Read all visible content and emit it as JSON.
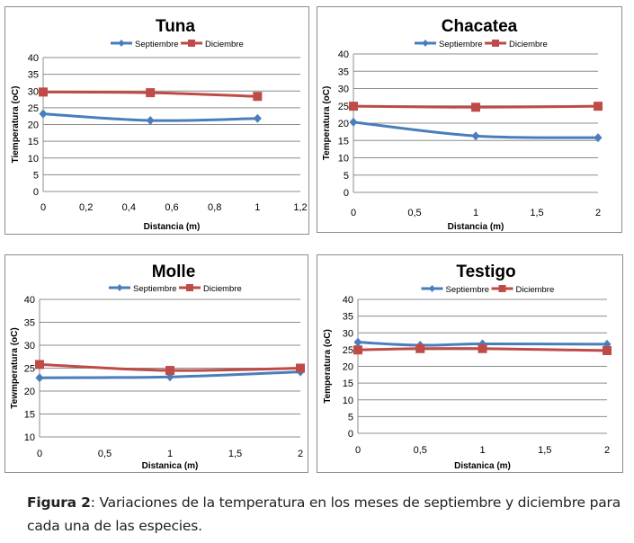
{
  "colors": {
    "septiembre": "#4a7ebb",
    "diciembre": "#be4b48",
    "grid": "#8c8c8c"
  },
  "caption": {
    "label": "Figura 2",
    "text": ": Variaciones de la temperatura en los meses de septiembre y diciembre para cada una de las especies."
  },
  "chart_data": [
    {
      "type": "line",
      "title": "Tuna",
      "xlabel": "Distancia (m)",
      "ylabel": "Tiemperatura (oC)",
      "xlim": [
        0,
        1.2
      ],
      "ylim": [
        0,
        40
      ],
      "xticks": [
        0,
        0.2,
        0.4,
        0.6,
        0.8,
        1,
        1.2
      ],
      "xtick_labels": [
        "0",
        "0,2",
        "0,4",
        "0,6",
        "0,8",
        "1",
        "1,2"
      ],
      "yticks": [
        0,
        5,
        10,
        15,
        20,
        25,
        30,
        35,
        40
      ],
      "grid": true,
      "legend": "top-center",
      "x": [
        0,
        0.5,
        1
      ],
      "series": [
        {
          "name": "Septiembre",
          "marker": "diamond",
          "values": [
            23.2,
            21.2,
            21.8
          ]
        },
        {
          "name": "Diciembre",
          "marker": "square",
          "values": [
            29.7,
            29.5,
            28.4
          ]
        }
      ]
    },
    {
      "type": "line",
      "title": "Chacatea",
      "xlabel": "Distancia (m)",
      "ylabel": "Temperatura (oC)",
      "xlim": [
        0,
        2
      ],
      "ylim": [
        0,
        40
      ],
      "xticks": [
        0,
        0.5,
        1,
        1.5,
        2
      ],
      "xtick_labels": [
        "0",
        "0,5",
        "1",
        "1,5",
        "2"
      ],
      "yticks": [
        0,
        5,
        10,
        15,
        20,
        25,
        30,
        35,
        40
      ],
      "grid": true,
      "legend": "top-center",
      "x": [
        0,
        1,
        2
      ],
      "series": [
        {
          "name": "Septiembre",
          "marker": "diamond",
          "values": [
            20.3,
            16.3,
            15.8
          ]
        },
        {
          "name": "Diciembre",
          "marker": "square",
          "values": [
            24.9,
            24.6,
            24.9
          ]
        }
      ]
    },
    {
      "type": "line",
      "title": "Molle",
      "xlabel": "Distanica (m)",
      "ylabel": "Tewmperatura (oC)",
      "xlim": [
        0,
        2
      ],
      "ylim": [
        10,
        40
      ],
      "xticks": [
        0,
        0.5,
        1,
        1.5,
        2
      ],
      "xtick_labels": [
        "0",
        "0,5",
        "1",
        "1,5",
        "2"
      ],
      "yticks": [
        10,
        15,
        20,
        25,
        30,
        35,
        40
      ],
      "grid": true,
      "legend": "top-center",
      "x": [
        0,
        1,
        2
      ],
      "series": [
        {
          "name": "Septiembre",
          "marker": "diamond",
          "values": [
            22.9,
            23.1,
            24.2
          ]
        },
        {
          "name": "Diciembre",
          "marker": "square",
          "values": [
            25.8,
            24.5,
            25.0
          ]
        }
      ]
    },
    {
      "type": "line",
      "title": "Testigo",
      "xlabel": "Distanica (m)",
      "ylabel": "Temperatura (oC)",
      "xlim": [
        0,
        2
      ],
      "ylim": [
        0,
        40
      ],
      "xticks": [
        0,
        0.5,
        1,
        1.5,
        2
      ],
      "xtick_labels": [
        "0",
        "0,5",
        "1",
        "1,5",
        "2"
      ],
      "yticks": [
        0,
        5,
        10,
        15,
        20,
        25,
        30,
        35,
        40
      ],
      "grid": true,
      "legend": "top-center",
      "x": [
        0,
        0.5,
        1,
        2
      ],
      "series": [
        {
          "name": "Septiembre",
          "marker": "diamond",
          "values": [
            27.2,
            26.3,
            26.7,
            26.6
          ]
        },
        {
          "name": "Diciembre",
          "marker": "square",
          "values": [
            24.9,
            25.3,
            25.3,
            24.7
          ]
        }
      ]
    }
  ]
}
